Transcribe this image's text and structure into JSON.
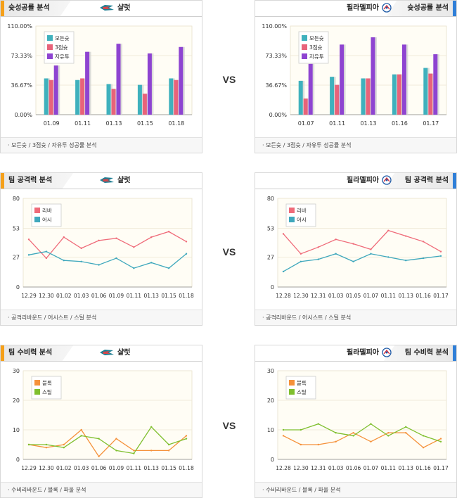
{
  "colors": {
    "accent_left": "#f5a01a",
    "accent_right": "#2f7fd8",
    "plot_bg": "#fffdf5"
  },
  "vs_label": "VS",
  "panels": [
    {
      "section": "슛성공률 분석",
      "team": "샬럿",
      "team_logo": "hornets-logo-icon",
      "side": "left",
      "footer": "모든슛 / 3점슛 / 자유투 성공률 분석",
      "chart_data": {
        "type": "bar",
        "categories": [
          "01.09",
          "01.11",
          "01.13",
          "01.15",
          "01.18"
        ],
        "ylim": [
          0,
          110
        ],
        "yticks": [
          "0.00%",
          "36.67%",
          "73.33%",
          "110.00%"
        ],
        "ytick_values": [
          0,
          36.67,
          73.33,
          110
        ],
        "legend_position": "top-left",
        "series": [
          {
            "name": "모든슛",
            "color": "#3fb1bd",
            "values": [
              45,
              43,
              38,
              37,
              45
            ]
          },
          {
            "name": "3점슛",
            "color": "#e8637a",
            "values": [
              43,
              45,
              32,
              26,
              43
            ]
          },
          {
            "name": "자유투",
            "color": "#8e44d1",
            "values": [
              61,
              78,
              88,
              76,
              84
            ]
          }
        ]
      }
    },
    {
      "section": "슛성공률 분석",
      "team": "필라델피아",
      "team_logo": "76ers-logo-icon",
      "side": "right",
      "footer": "모든슛 / 3점슛 / 자유투 성공률 분석",
      "chart_data": {
        "type": "bar",
        "categories": [
          "01.07",
          "01.11",
          "01.13",
          "01.16",
          "01.17"
        ],
        "ylim": [
          0,
          110
        ],
        "yticks": [
          "0.00%",
          "36.67%",
          "73.33%",
          "110.00%"
        ],
        "ytick_values": [
          0,
          36.67,
          73.33,
          110
        ],
        "legend_position": "top-left",
        "series": [
          {
            "name": "모든슛",
            "color": "#3fb1bd",
            "values": [
              42,
              47,
              45,
              50,
              58
            ]
          },
          {
            "name": "3점슛",
            "color": "#e8637a",
            "values": [
              20,
              37,
              45,
              50,
              51
            ]
          },
          {
            "name": "자유투",
            "color": "#8e44d1",
            "values": [
              63,
              87,
              96,
              87,
              75
            ]
          }
        ]
      }
    },
    {
      "section": "팀 공격력 분석",
      "team": "샬럿",
      "team_logo": "hornets-logo-icon",
      "side": "left",
      "footer": "공격리바운드 / 어시스트 / 스틸 분석",
      "chart_data": {
        "type": "line",
        "categories": [
          "12.29",
          "12.30",
          "01.02",
          "01.03",
          "01.06",
          "01.09",
          "01.11",
          "01.13",
          "01.15",
          "01.18"
        ],
        "ylim": [
          0,
          80
        ],
        "yticks": [
          "0",
          "27",
          "53",
          "80"
        ],
        "ytick_values": [
          0,
          27,
          53,
          80
        ],
        "legend_position": "top-left",
        "series": [
          {
            "name": "리바",
            "color": "#ef6b79",
            "values": [
              43,
              26,
              45,
              35,
              42,
              44,
              36,
              45,
              50,
              41
            ]
          },
          {
            "name": "어시",
            "color": "#3fa8bd",
            "values": [
              29,
              32,
              24,
              23,
              20,
              26,
              17,
              22,
              17,
              30
            ]
          }
        ]
      }
    },
    {
      "section": "팀 공격력 분석",
      "team": "필라델피아",
      "team_logo": "76ers-logo-icon",
      "side": "right",
      "footer": "공격리바운드 / 어시스트 / 스틸 분석",
      "chart_data": {
        "type": "line",
        "categories": [
          "12.28",
          "12.30",
          "12.31",
          "01.03",
          "01.05",
          "01.07",
          "01.11",
          "01.13",
          "01.16",
          "01.17"
        ],
        "ylim": [
          0,
          80
        ],
        "yticks": [
          "0",
          "27",
          "53",
          "80"
        ],
        "ytick_values": [
          0,
          27,
          53,
          80
        ],
        "legend_position": "top-left",
        "series": [
          {
            "name": "리바",
            "color": "#ef6b79",
            "values": [
              48,
              30,
              36,
              43,
              39,
              34,
              51,
              46,
              41,
              32
            ]
          },
          {
            "name": "어시",
            "color": "#3fa8bd",
            "values": [
              14,
              23,
              25,
              30,
              23,
              30,
              27,
              24,
              26,
              28
            ]
          }
        ]
      }
    },
    {
      "section": "팀 수비력 분석",
      "team": "샬럿",
      "team_logo": "hornets-logo-icon",
      "side": "left",
      "footer": "수비리바운드 / 블록 / 파울 분석",
      "chart_data": {
        "type": "line",
        "categories": [
          "12.29",
          "12.30",
          "01.02",
          "01.03",
          "01.06",
          "01.09",
          "01.11",
          "01.13",
          "01.15",
          "01.18"
        ],
        "ylim": [
          0,
          30
        ],
        "yticks": [
          "0",
          "10",
          "20",
          "30"
        ],
        "ytick_values": [
          0,
          10,
          20,
          30
        ],
        "legend_position": "top-left",
        "series": [
          {
            "name": "블록",
            "color": "#f5913a",
            "values": [
              5,
              4,
              5,
              10,
              1,
              7,
              3,
              3,
              3,
              8
            ]
          },
          {
            "name": "스틸",
            "color": "#7fbf2e",
            "values": [
              5,
              5,
              4,
              8,
              7,
              3,
              2,
              11,
              5,
              7
            ]
          }
        ]
      }
    },
    {
      "section": "팀 수비력 분석",
      "team": "필라델피아",
      "team_logo": "76ers-logo-icon",
      "side": "right",
      "footer": "수비리바운드 / 블록 / 파울 분석",
      "chart_data": {
        "type": "line",
        "categories": [
          "12.28",
          "12.30",
          "12.31",
          "01.03",
          "01.06",
          "01.07",
          "01.11",
          "01.13",
          "01.16",
          "01.17"
        ],
        "ylim": [
          0,
          30
        ],
        "yticks": [
          "0",
          "10",
          "20",
          "30"
        ],
        "ytick_values": [
          0,
          10,
          20,
          30
        ],
        "legend_position": "top-left",
        "series": [
          {
            "name": "블록",
            "color": "#f5913a",
            "values": [
              8,
              5,
              5,
              6,
              9,
              6,
              9,
              9,
              4,
              7
            ]
          },
          {
            "name": "스틸",
            "color": "#7fbf2e",
            "values": [
              10,
              10,
              12,
              9,
              8,
              12,
              8,
              11,
              8,
              6
            ]
          }
        ]
      }
    }
  ]
}
